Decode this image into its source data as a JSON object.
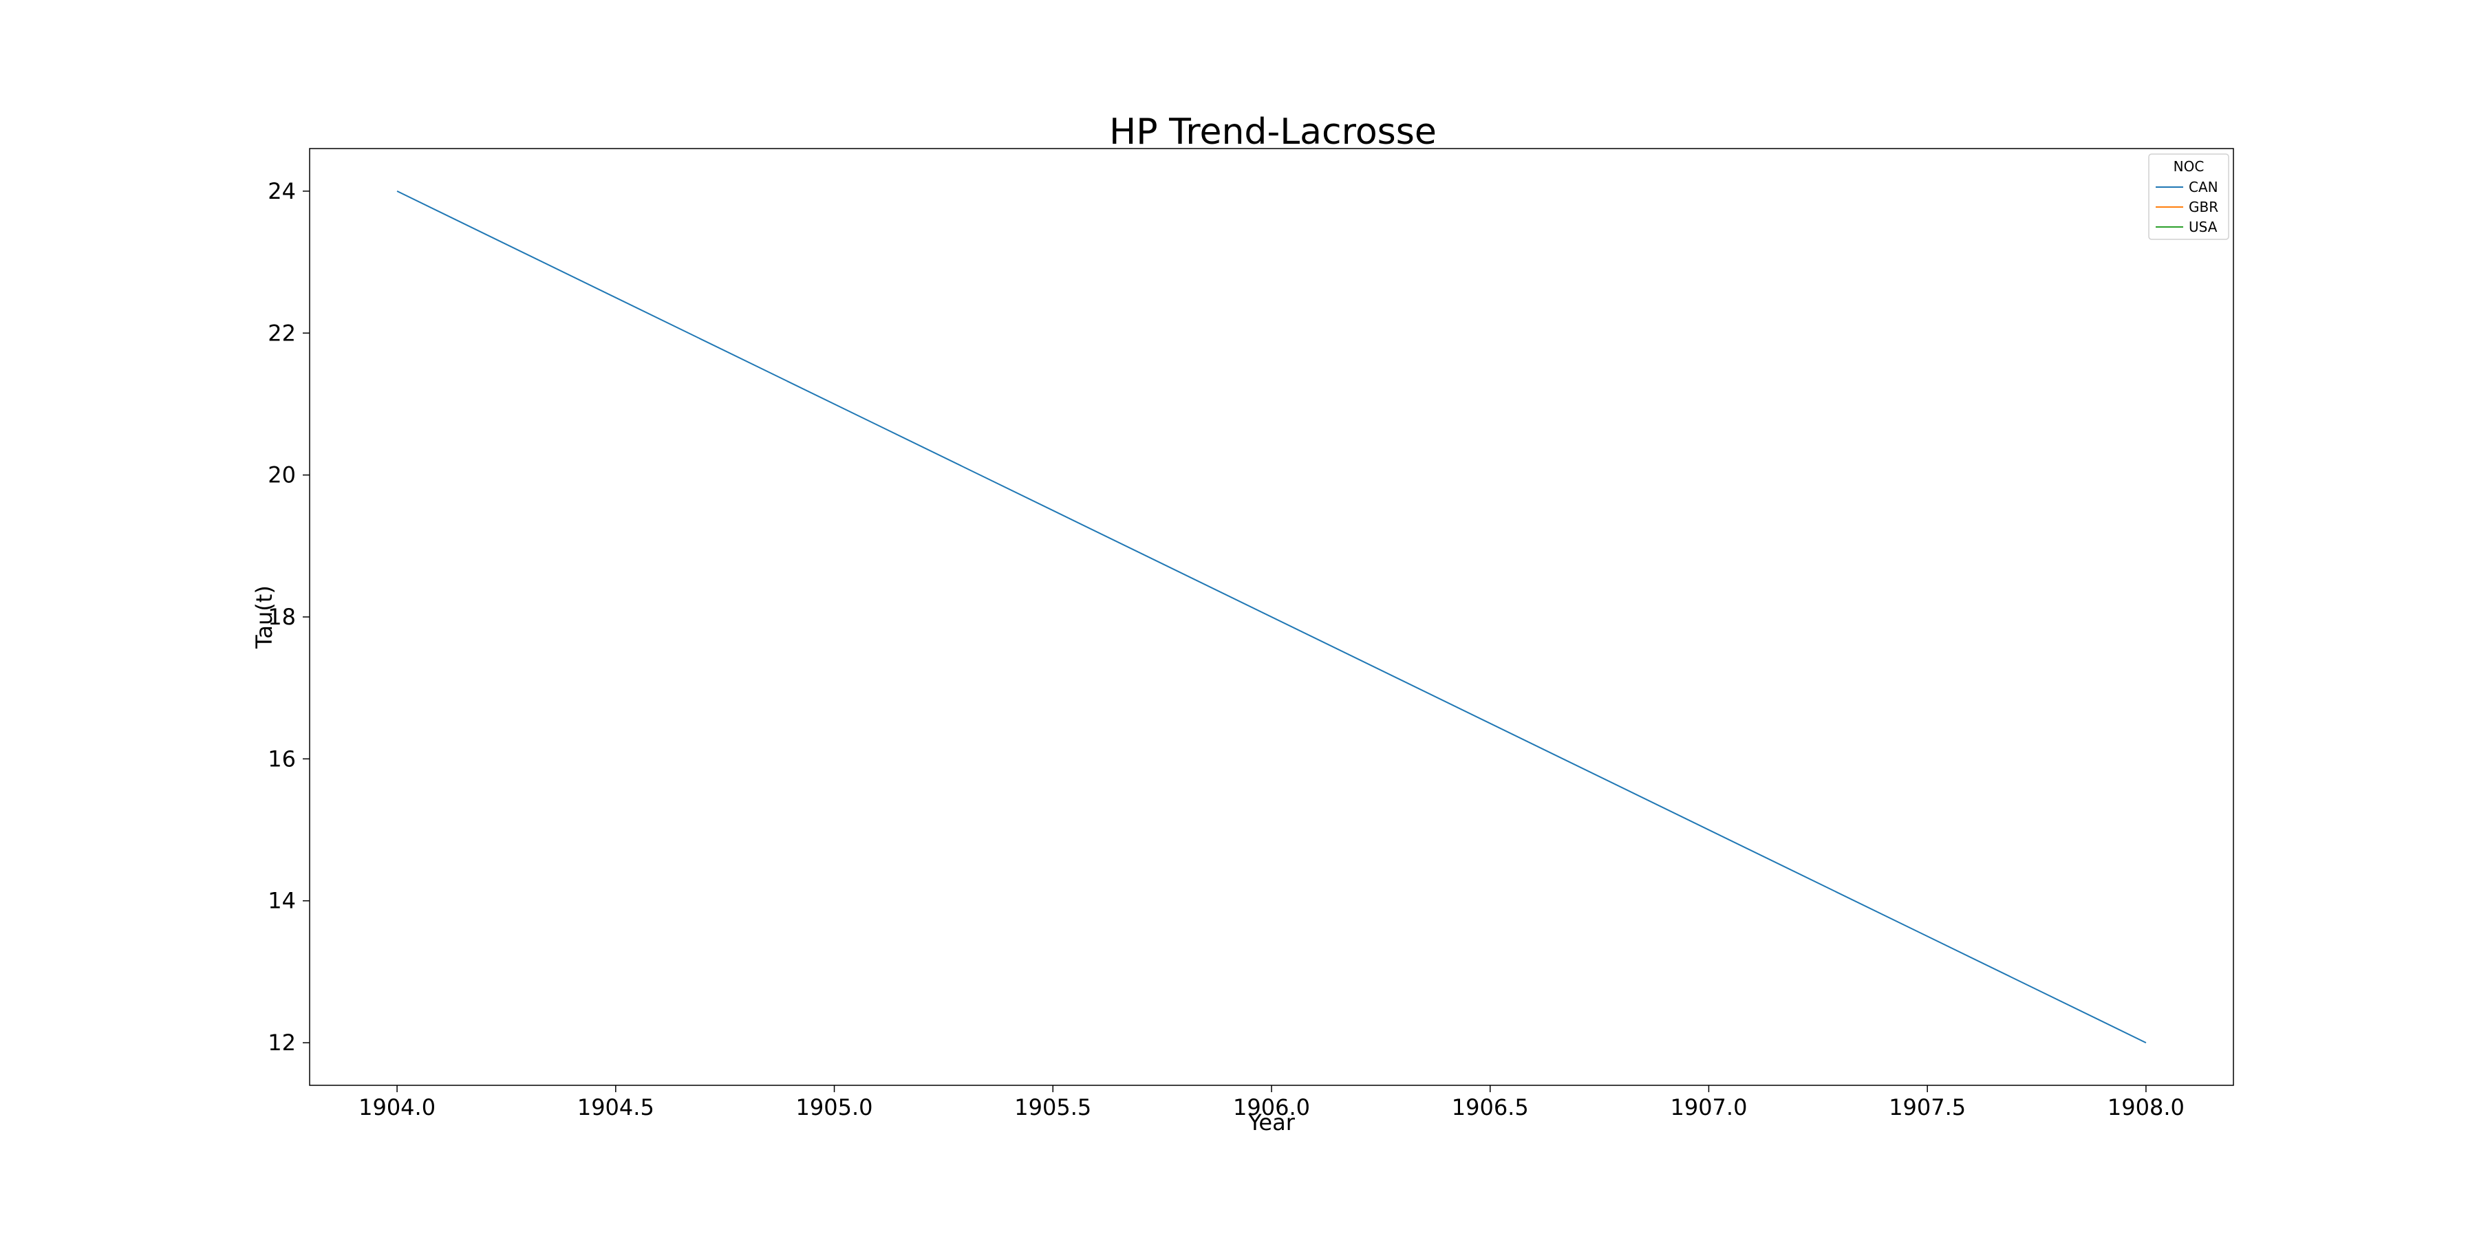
{
  "chart_data": {
    "type": "line",
    "title": "HP Trend-Lacrosse",
    "xlabel": "Year",
    "ylabel": "Tau(t)",
    "xlim": [
      1903.8,
      1908.2
    ],
    "ylim": [
      11.4,
      24.6
    ],
    "x_ticks": [
      "1904.0",
      "1904.5",
      "1905.0",
      "1905.5",
      "1906.0",
      "1906.5",
      "1907.0",
      "1907.5",
      "1908.0"
    ],
    "x_tick_values": [
      1904.0,
      1904.5,
      1905.0,
      1905.5,
      1906.0,
      1906.5,
      1907.0,
      1907.5,
      1908.0
    ],
    "y_ticks": [
      "12",
      "14",
      "16",
      "18",
      "20",
      "22",
      "24"
    ],
    "y_tick_values": [
      12,
      14,
      16,
      18,
      20,
      22,
      24
    ],
    "grid": false,
    "legend": {
      "title": "NOC",
      "placement": "top-right"
    },
    "series": [
      {
        "name": "CAN",
        "color": "#1f77b4",
        "x": [
          1904,
          1908
        ],
        "y": [
          24,
          12
        ]
      },
      {
        "name": "GBR",
        "color": "#ff7f0e",
        "x": [],
        "y": []
      },
      {
        "name": "USA",
        "color": "#2ca02c",
        "x": [],
        "y": []
      }
    ]
  }
}
